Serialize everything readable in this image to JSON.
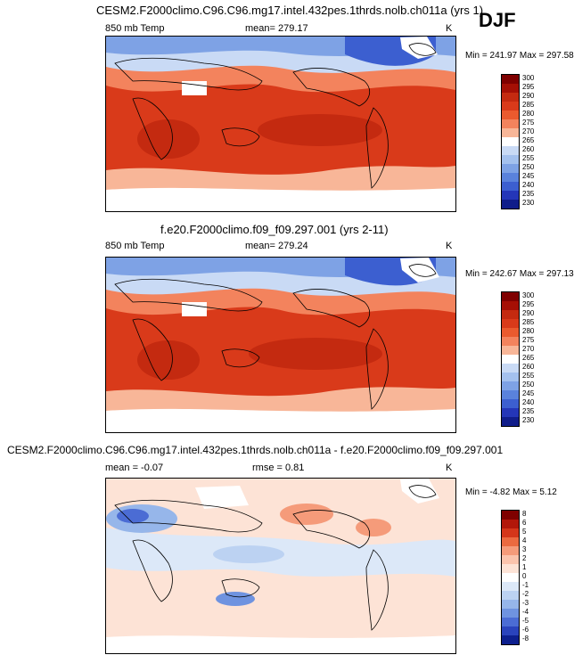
{
  "season": "DJF",
  "panels": [
    {
      "title": "CESM2.F2000climo.C96.C96.mg17.intel.432pes.1thrds.nolb.ch011a (yrs 1)",
      "left_label": "850 mb Temp",
      "center_label": "mean= 279.17",
      "units": "K",
      "minmax": "Min = 241.97 Max = 297.58"
    },
    {
      "title": "f.e20.F2000climo.f09_f09.297.001 (yrs 2-11)",
      "left_label": "850 mb Temp",
      "center_label": "mean= 279.24",
      "units": "K",
      "minmax": "Min = 242.67 Max = 297.13"
    },
    {
      "title": "CESM2.F2000climo.C96.C96.mg17.intel.432pes.1thrds.nolb.ch011a - f.e20.F2000climo.f09_f09.297.001",
      "left_label": "mean =  -0.07",
      "center_label": "rmse =   0.81",
      "units": "K",
      "minmax": "Min =  -4.82 Max =   5.12"
    }
  ],
  "chart_data": [
    {
      "type": "heatmap",
      "title": "CESM2.F2000climo.C96.C96.mg17.intel.432pes.1thrds.nolb.ch011a (yrs 1)",
      "variable": "850 mb Temp",
      "units": "K",
      "mean": 279.17,
      "min": 241.97,
      "max": 297.58,
      "colorbar_levels": [
        "300",
        "295",
        "290",
        "285",
        "280",
        "275",
        "270",
        "265",
        "260",
        "255",
        "250",
        "245",
        "240",
        "235",
        "230"
      ]
    },
    {
      "type": "heatmap",
      "title": "f.e20.F2000climo.f09_f09.297.001 (yrs 2-11)",
      "variable": "850 mb Temp",
      "units": "K",
      "mean": 279.24,
      "min": 242.67,
      "max": 297.13,
      "colorbar_levels": [
        "300",
        "295",
        "290",
        "285",
        "280",
        "275",
        "270",
        "265",
        "260",
        "255",
        "250",
        "245",
        "240",
        "235",
        "230"
      ]
    },
    {
      "type": "heatmap",
      "title": "CESM2.F2000climo.C96.C96.mg17.intel.432pes.1thrds.nolb.ch011a - f.e20.F2000climo.f09_f09.297.001",
      "units": "K",
      "mean": -0.07,
      "rmse": 0.81,
      "min": -4.82,
      "max": 5.12,
      "colorbar_levels": [
        "8",
        "6",
        "5",
        "4",
        "3",
        "2",
        "1",
        "0",
        "-1",
        "-2",
        "-3",
        "-4",
        "-5",
        "-6",
        "-8"
      ]
    }
  ],
  "colors": {
    "abs": [
      "#7f0000",
      "#a50f05",
      "#c42a10",
      "#d93a1a",
      "#ea5a2e",
      "#f3835d",
      "#f8b698",
      "#ffffff",
      "#c9daf5",
      "#a4c1ee",
      "#7ea2e5",
      "#5a82dc",
      "#3c5fd0",
      "#2436b8",
      "#101d8a"
    ],
    "diff": [
      "#7f0000",
      "#b2170a",
      "#d4361a",
      "#eb6a40",
      "#f59b7a",
      "#fbc4ad",
      "#fde3d6",
      "#ffffff",
      "#dce8f8",
      "#bcd2f2",
      "#96b6ea",
      "#6f93e0",
      "#4b6cd4",
      "#2a43bc",
      "#0d1f8e"
    ]
  }
}
